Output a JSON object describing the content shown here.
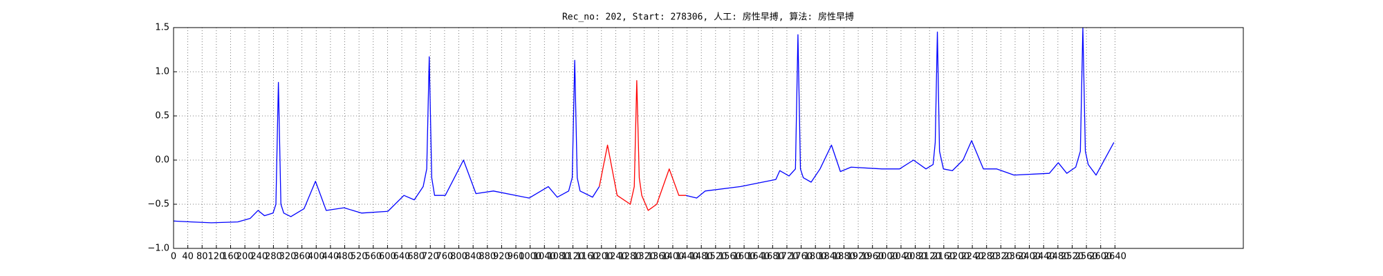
{
  "chart_data": {
    "type": "line",
    "title": "Rec_no: 202, Start: 278306, 人工: 房性早搏, 算法: 房性早搏",
    "x": [
      0,
      50,
      106,
      180,
      215,
      237,
      255,
      279,
      287,
      294,
      301,
      309,
      329,
      366,
      398,
      428,
      478,
      527,
      601,
      646,
      675,
      700,
      710,
      717,
      724,
      732,
      762,
      813,
      848,
      897,
      997,
      1051,
      1076,
      1108,
      1118,
      1125,
      1132,
      1140,
      1175,
      1194,
      1217,
      1244,
      1281,
      1292,
      1299,
      1306,
      1313,
      1331,
      1355,
      1390,
      1417,
      1437,
      1467,
      1491,
      1590,
      1689,
      1700,
      1726,
      1744,
      1751,
      1758,
      1766,
      1788,
      1813,
      1845,
      1870,
      1900,
      1986,
      2036,
      2075,
      2110,
      2130,
      2136,
      2142,
      2148,
      2159,
      2184,
      2214,
      2238,
      2271,
      2308,
      2357,
      2456,
      2481,
      2505,
      2530,
      2543,
      2550,
      2557,
      2565,
      2587,
      2637
    ],
    "series": [
      {
        "color": "#0000ff",
        "values": [
          -0.69,
          -0.7,
          -0.71,
          -0.7,
          -0.66,
          -0.57,
          -0.63,
          -0.6,
          -0.5,
          0.88,
          -0.5,
          -0.6,
          -0.64,
          -0.55,
          -0.24,
          -0.57,
          -0.54,
          -0.6,
          -0.58,
          -0.4,
          -0.45,
          -0.3,
          -0.1,
          1.17,
          -0.2,
          -0.4,
          -0.4,
          0.0,
          -0.38,
          -0.35,
          -0.43,
          -0.3,
          -0.42,
          -0.35,
          -0.2,
          1.13,
          -0.2,
          -0.35,
          -0.42,
          -0.3,
          null,
          null,
          null,
          null,
          null,
          null,
          null,
          null,
          null,
          null,
          null,
          -0.4,
          -0.43,
          -0.35,
          -0.3,
          -0.22,
          -0.12,
          -0.18,
          -0.1,
          1.42,
          -0.1,
          -0.2,
          -0.25,
          -0.1,
          0.17,
          -0.13,
          -0.08,
          -0.1,
          -0.1,
          0.0,
          -0.1,
          -0.05,
          0.2,
          1.45,
          0.1,
          -0.1,
          -0.12,
          0.0,
          0.22,
          -0.1,
          -0.1,
          -0.17,
          -0.15,
          -0.03,
          -0.15,
          -0.08,
          0.1,
          1.5,
          0.1,
          -0.05,
          -0.17,
          0.2
        ]
      },
      {
        "color": "#ff0000",
        "values": [
          null,
          null,
          null,
          null,
          null,
          null,
          null,
          null,
          null,
          null,
          null,
          null,
          null,
          null,
          null,
          null,
          null,
          null,
          null,
          null,
          null,
          null,
          null,
          null,
          null,
          null,
          null,
          null,
          null,
          null,
          null,
          null,
          null,
          null,
          null,
          null,
          null,
          null,
          null,
          -0.3,
          0.17,
          -0.4,
          -0.5,
          -0.3,
          0.9,
          -0.2,
          -0.4,
          -0.57,
          -0.5,
          -0.1,
          -0.4,
          -0.4,
          null,
          null,
          null,
          null,
          null,
          null,
          null,
          null,
          null,
          null,
          null,
          null,
          null,
          null,
          null,
          null,
          null,
          null,
          null,
          null,
          null,
          null,
          null,
          null,
          null,
          null,
          null,
          null,
          null,
          null,
          null,
          null,
          null,
          null,
          null,
          null,
          null,
          null,
          null,
          null
        ]
      }
    ],
    "xlim": [
      0,
      3000
    ],
    "xticks": [
      0,
      40,
      80,
      120,
      160,
      200,
      240,
      280,
      320,
      360,
      400,
      440,
      480,
      520,
      560,
      600,
      640,
      680,
      720,
      760,
      800,
      840,
      880,
      920,
      960,
      1000,
      1040,
      1080,
      1120,
      1160,
      1200,
      1240,
      1280,
      1320,
      1360,
      1400,
      1440,
      1480,
      1520,
      1560,
      1600,
      1640,
      1680,
      1720,
      1760,
      1800,
      1840,
      1880,
      1920,
      1960,
      2000,
      2040,
      2080,
      2120,
      2160,
      2200,
      2240,
      2280,
      2320,
      2360,
      2400,
      2440,
      2480,
      2520,
      2560,
      2600,
      2640
    ],
    "ylim": [
      -1.0,
      1.5
    ],
    "yticks": [
      {
        "value": -1.0,
        "label": "−1.0"
      },
      {
        "value": -0.5,
        "label": "−0.5"
      },
      {
        "value": 0.0,
        "label": "0.0"
      },
      {
        "value": 0.5,
        "label": "0.5"
      },
      {
        "value": 1.0,
        "label": "1.0"
      },
      {
        "value": 1.5,
        "label": "1.5"
      }
    ],
    "grid": true
  }
}
